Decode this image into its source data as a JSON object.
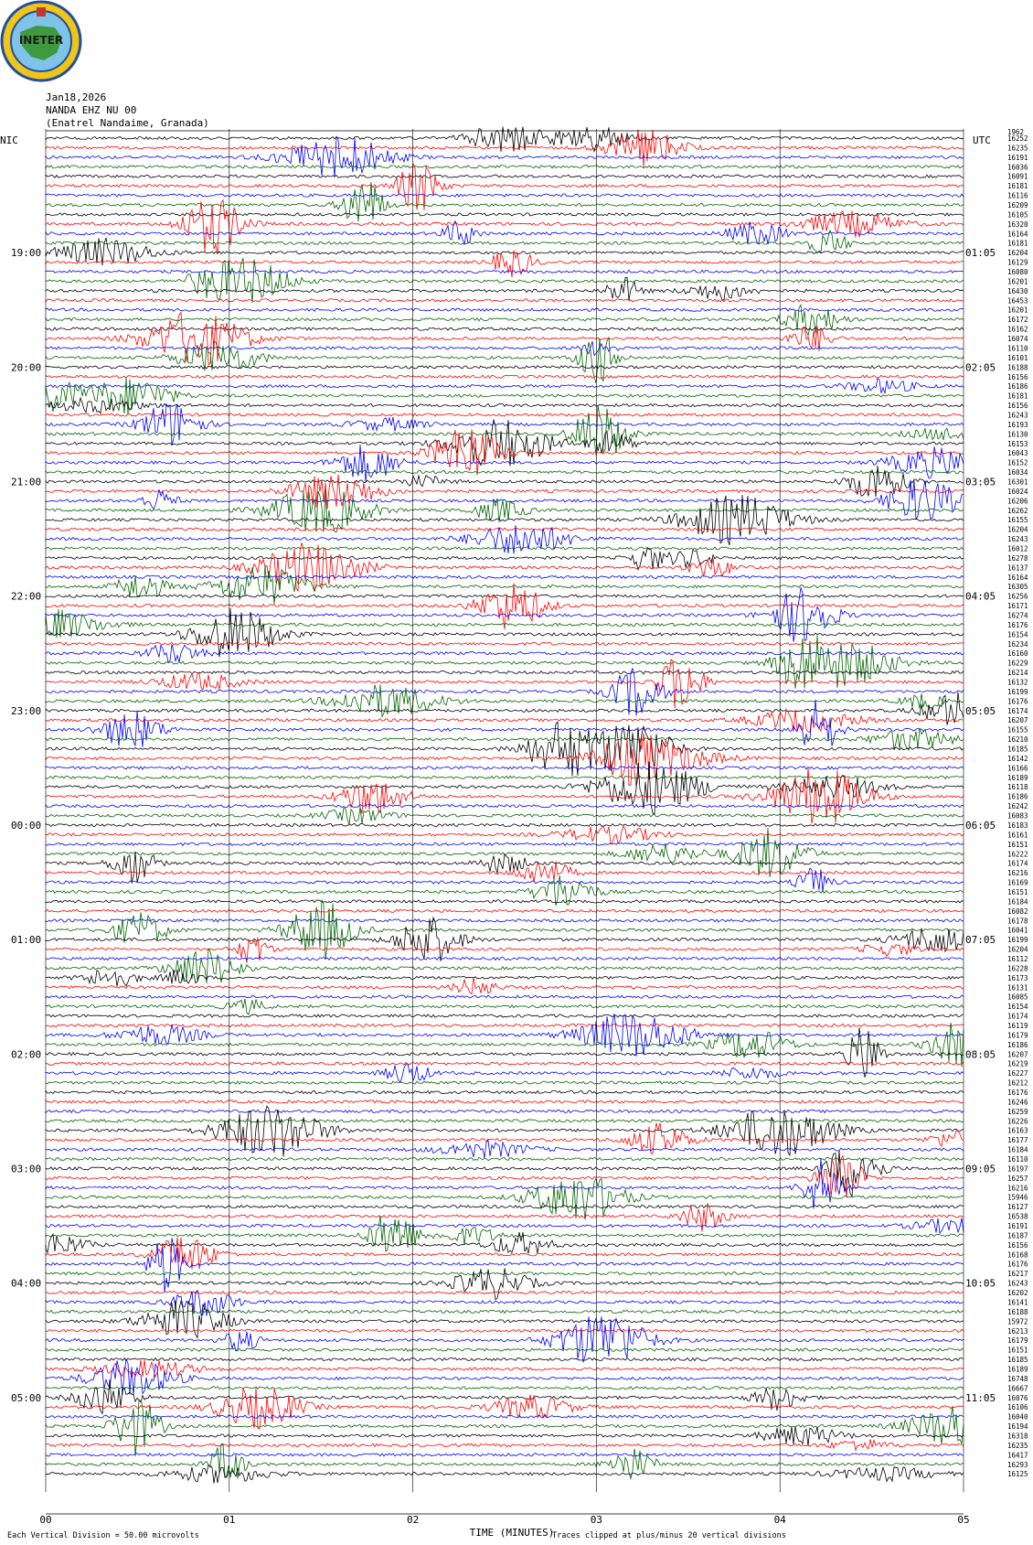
{
  "logo": {
    "text": "INETER",
    "colors": {
      "ring": "#1f4f9c",
      "gold": "#f0c419",
      "map": "#3f9a3f",
      "sea": "#7fc4e8"
    }
  },
  "header": {
    "date": "Jan18,2026",
    "station": "NANDA EHZ NU 00",
    "location": "(Enatrel Nandaime, Granada)"
  },
  "chart_data": {
    "type": "line",
    "description_none": "",
    "left_axis_label": "NIC",
    "right_axis_label": "UTC",
    "left_ticks": [
      "19:00",
      "20:00",
      "21:00",
      "22:00",
      "23:00",
      "00:00",
      "01:00",
      "02:00",
      "03:00",
      "04:00",
      "05:00"
    ],
    "right_ticks": [
      "01:05",
      "02:05",
      "03:05",
      "04:05",
      "05:05",
      "06:05",
      "07:05",
      "08:05",
      "09:05",
      "10:05",
      "11:05"
    ],
    "x_ticks": [
      "00",
      "01",
      "02",
      "03",
      "04",
      "05"
    ],
    "xlabel": "TIME (MINUTES)",
    "xlim": [
      0,
      5
    ],
    "traces_per_hour": 12,
    "trace_colors": [
      "#000000",
      "#ff0000",
      "#0000ff",
      "#006400"
    ],
    "trace_counts": [
      "16252",
      "16235",
      "16191",
      "16036",
      "16091",
      "16181",
      "16116",
      "16209",
      "16105",
      "16320",
      "16164",
      "16181",
      "16204",
      "16129",
      "16080",
      "16201",
      "16430",
      "16453",
      "16201",
      "16172",
      "16162",
      "16074",
      "16110",
      "16101",
      "16188",
      "16156",
      "16186",
      "16181",
      "16156",
      "16243",
      "16193",
      "16130",
      "16153",
      "16043",
      "16152",
      "16034",
      "16301",
      "16024",
      "16206",
      "16262",
      "16155",
      "16204",
      "16243",
      "16012",
      "16278",
      "16137",
      "16164",
      "16305",
      "16256",
      "16171",
      "16274",
      "16176",
      "16154",
      "16234",
      "16160",
      "16229",
      "16214",
      "16132",
      "16199",
      "16176",
      "16174",
      "16207",
      "16155",
      "16210",
      "16185",
      "16142",
      "16166",
      "16189",
      "16118",
      "16186",
      "16242",
      "16083",
      "16183",
      "16161",
      "16151",
      "16222",
      "16174",
      "16216",
      "16169",
      "16151",
      "16184",
      "16082",
      "16178",
      "16041",
      "16199",
      "16204",
      "16112",
      "16228",
      "16173",
      "16131",
      "16085",
      "16154",
      "16174",
      "16119",
      "16179",
      "16186",
      "16207",
      "16219",
      "16227",
      "16212",
      "16176",
      "16246",
      "16259",
      "16226",
      "16163",
      "16177",
      "16184",
      "16110",
      "16197",
      "16257",
      "16216",
      "15946",
      "16127",
      "16538",
      "16191",
      "16187",
      "16156",
      "16168",
      "16176",
      "16217",
      "16243",
      "16202",
      "16141",
      "16188",
      "15972",
      "16213",
      "16179",
      "16151",
      "16185",
      "16189",
      "16748",
      "16667",
      "16076",
      "16106",
      "16040",
      "16194",
      "16318",
      "16235",
      "16417",
      "16293",
      "16125"
    ],
    "top_counter": "1962",
    "footer_left": "Each Vertical Division = 50.00 microvolts",
    "footer_right": "Traces clipped at plus/minus 20 vertical divisions"
  }
}
